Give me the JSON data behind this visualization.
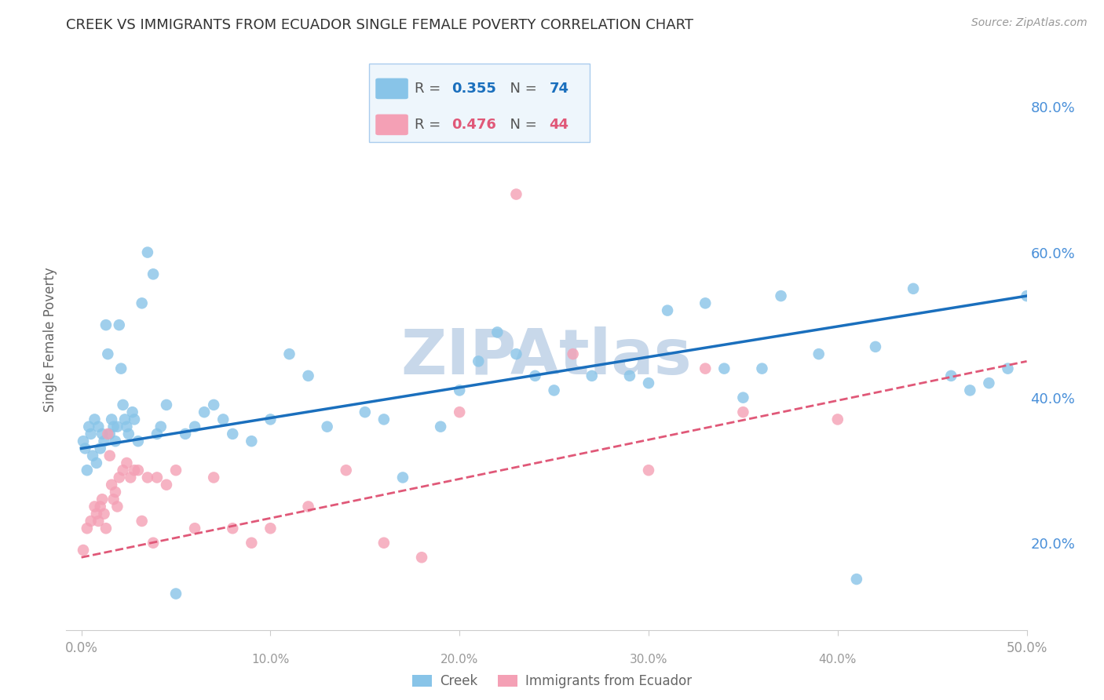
{
  "title": "CREEK VS IMMIGRANTS FROM ECUADOR SINGLE FEMALE POVERTY CORRELATION CHART",
  "source": "Source: ZipAtlas.com",
  "ylabel": "Single Female Poverty",
  "right_yticks": [
    "80.0%",
    "60.0%",
    "40.0%",
    "20.0%"
  ],
  "right_ytick_vals": [
    0.8,
    0.6,
    0.4,
    0.2
  ],
  "xmin": 0.0,
  "xmax": 0.5,
  "ymin": 0.08,
  "ymax": 0.88,
  "creek_R": 0.355,
  "creek_N": 74,
  "ecuador_R": 0.476,
  "ecuador_N": 44,
  "creek_color": "#88c4e8",
  "ecuador_color": "#f4a0b5",
  "creek_line_color": "#1a6fbd",
  "ecuador_line_color": "#e05878",
  "watermark": "ZIPAtlas",
  "watermark_color": "#c8d8ea",
  "background_color": "#ffffff",
  "grid_color": "#cccccc",
  "title_color": "#333333",
  "right_axis_color": "#4a90d9",
  "legend_box_color": "#eef6fc",
  "legend_border_color": "#aaccee",
  "creek_x": [
    0.001,
    0.002,
    0.003,
    0.004,
    0.005,
    0.006,
    0.007,
    0.008,
    0.009,
    0.01,
    0.011,
    0.012,
    0.013,
    0.014,
    0.015,
    0.016,
    0.017,
    0.018,
    0.019,
    0.02,
    0.021,
    0.022,
    0.023,
    0.024,
    0.025,
    0.027,
    0.028,
    0.03,
    0.032,
    0.035,
    0.038,
    0.04,
    0.042,
    0.045,
    0.05,
    0.055,
    0.06,
    0.065,
    0.07,
    0.075,
    0.08,
    0.09,
    0.1,
    0.11,
    0.12,
    0.13,
    0.15,
    0.16,
    0.17,
    0.19,
    0.2,
    0.21,
    0.22,
    0.23,
    0.24,
    0.25,
    0.27,
    0.29,
    0.31,
    0.33,
    0.35,
    0.37,
    0.39,
    0.42,
    0.44,
    0.46,
    0.47,
    0.48,
    0.49,
    0.5,
    0.3,
    0.34,
    0.36,
    0.41
  ],
  "creek_y": [
    0.34,
    0.33,
    0.3,
    0.36,
    0.35,
    0.32,
    0.37,
    0.31,
    0.36,
    0.33,
    0.35,
    0.34,
    0.5,
    0.46,
    0.35,
    0.37,
    0.36,
    0.34,
    0.36,
    0.5,
    0.44,
    0.39,
    0.37,
    0.36,
    0.35,
    0.38,
    0.37,
    0.34,
    0.53,
    0.6,
    0.57,
    0.35,
    0.36,
    0.39,
    0.13,
    0.35,
    0.36,
    0.38,
    0.39,
    0.37,
    0.35,
    0.34,
    0.37,
    0.46,
    0.43,
    0.36,
    0.38,
    0.37,
    0.29,
    0.36,
    0.41,
    0.45,
    0.49,
    0.46,
    0.43,
    0.41,
    0.43,
    0.43,
    0.52,
    0.53,
    0.4,
    0.54,
    0.46,
    0.47,
    0.55,
    0.43,
    0.41,
    0.42,
    0.44,
    0.54,
    0.42,
    0.44,
    0.44,
    0.15
  ],
  "ecuador_x": [
    0.001,
    0.003,
    0.005,
    0.007,
    0.008,
    0.009,
    0.01,
    0.011,
    0.012,
    0.013,
    0.014,
    0.015,
    0.016,
    0.017,
    0.018,
    0.019,
    0.02,
    0.022,
    0.024,
    0.026,
    0.028,
    0.03,
    0.032,
    0.035,
    0.038,
    0.04,
    0.045,
    0.05,
    0.06,
    0.07,
    0.08,
    0.09,
    0.1,
    0.12,
    0.14,
    0.16,
    0.18,
    0.2,
    0.23,
    0.26,
    0.3,
    0.33,
    0.35,
    0.4
  ],
  "ecuador_y": [
    0.19,
    0.22,
    0.23,
    0.25,
    0.24,
    0.23,
    0.25,
    0.26,
    0.24,
    0.22,
    0.35,
    0.32,
    0.28,
    0.26,
    0.27,
    0.25,
    0.29,
    0.3,
    0.31,
    0.29,
    0.3,
    0.3,
    0.23,
    0.29,
    0.2,
    0.29,
    0.28,
    0.3,
    0.22,
    0.29,
    0.22,
    0.2,
    0.22,
    0.25,
    0.3,
    0.2,
    0.18,
    0.38,
    0.68,
    0.46,
    0.3,
    0.44,
    0.38,
    0.37
  ]
}
